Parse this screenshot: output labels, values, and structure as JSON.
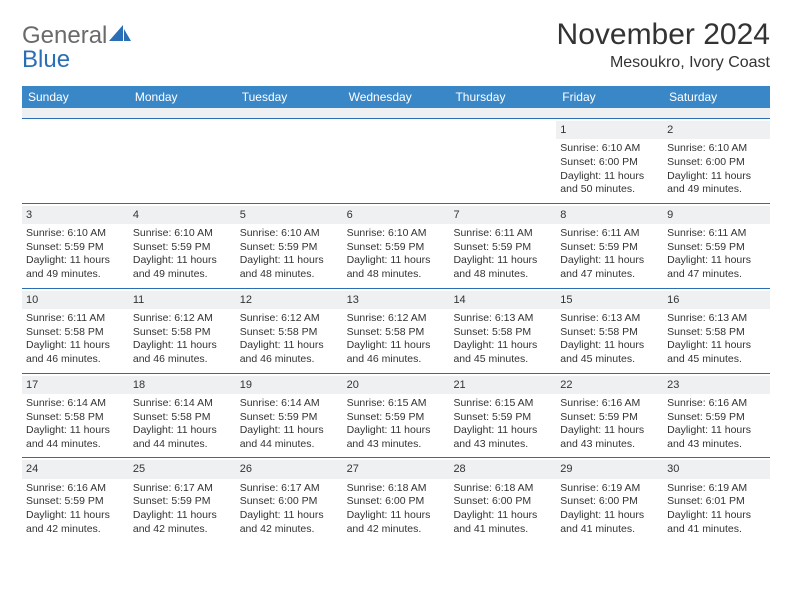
{
  "logo": {
    "text1": "General",
    "text2": "Blue"
  },
  "title": "November 2024",
  "subtitle": "Mesoukro, Ivory Coast",
  "header_bg": "#3a87c8",
  "header_fg": "#ffffff",
  "daynum_bg": "#eef0f2",
  "border_color": "#2a6fb5",
  "weekdays": [
    "Sunday",
    "Monday",
    "Tuesday",
    "Wednesday",
    "Thursday",
    "Friday",
    "Saturday"
  ],
  "weeks": [
    [
      {
        "n": "",
        "sr": "",
        "ss": "",
        "dl": ""
      },
      {
        "n": "",
        "sr": "",
        "ss": "",
        "dl": ""
      },
      {
        "n": "",
        "sr": "",
        "ss": "",
        "dl": ""
      },
      {
        "n": "",
        "sr": "",
        "ss": "",
        "dl": ""
      },
      {
        "n": "",
        "sr": "",
        "ss": "",
        "dl": ""
      },
      {
        "n": "1",
        "sr": "Sunrise: 6:10 AM",
        "ss": "Sunset: 6:00 PM",
        "dl": "Daylight: 11 hours and 50 minutes."
      },
      {
        "n": "2",
        "sr": "Sunrise: 6:10 AM",
        "ss": "Sunset: 6:00 PM",
        "dl": "Daylight: 11 hours and 49 minutes."
      }
    ],
    [
      {
        "n": "3",
        "sr": "Sunrise: 6:10 AM",
        "ss": "Sunset: 5:59 PM",
        "dl": "Daylight: 11 hours and 49 minutes."
      },
      {
        "n": "4",
        "sr": "Sunrise: 6:10 AM",
        "ss": "Sunset: 5:59 PM",
        "dl": "Daylight: 11 hours and 49 minutes."
      },
      {
        "n": "5",
        "sr": "Sunrise: 6:10 AM",
        "ss": "Sunset: 5:59 PM",
        "dl": "Daylight: 11 hours and 48 minutes."
      },
      {
        "n": "6",
        "sr": "Sunrise: 6:10 AM",
        "ss": "Sunset: 5:59 PM",
        "dl": "Daylight: 11 hours and 48 minutes."
      },
      {
        "n": "7",
        "sr": "Sunrise: 6:11 AM",
        "ss": "Sunset: 5:59 PM",
        "dl": "Daylight: 11 hours and 48 minutes."
      },
      {
        "n": "8",
        "sr": "Sunrise: 6:11 AM",
        "ss": "Sunset: 5:59 PM",
        "dl": "Daylight: 11 hours and 47 minutes."
      },
      {
        "n": "9",
        "sr": "Sunrise: 6:11 AM",
        "ss": "Sunset: 5:59 PM",
        "dl": "Daylight: 11 hours and 47 minutes."
      }
    ],
    [
      {
        "n": "10",
        "sr": "Sunrise: 6:11 AM",
        "ss": "Sunset: 5:58 PM",
        "dl": "Daylight: 11 hours and 46 minutes."
      },
      {
        "n": "11",
        "sr": "Sunrise: 6:12 AM",
        "ss": "Sunset: 5:58 PM",
        "dl": "Daylight: 11 hours and 46 minutes."
      },
      {
        "n": "12",
        "sr": "Sunrise: 6:12 AM",
        "ss": "Sunset: 5:58 PM",
        "dl": "Daylight: 11 hours and 46 minutes."
      },
      {
        "n": "13",
        "sr": "Sunrise: 6:12 AM",
        "ss": "Sunset: 5:58 PM",
        "dl": "Daylight: 11 hours and 46 minutes."
      },
      {
        "n": "14",
        "sr": "Sunrise: 6:13 AM",
        "ss": "Sunset: 5:58 PM",
        "dl": "Daylight: 11 hours and 45 minutes."
      },
      {
        "n": "15",
        "sr": "Sunrise: 6:13 AM",
        "ss": "Sunset: 5:58 PM",
        "dl": "Daylight: 11 hours and 45 minutes."
      },
      {
        "n": "16",
        "sr": "Sunrise: 6:13 AM",
        "ss": "Sunset: 5:58 PM",
        "dl": "Daylight: 11 hours and 45 minutes."
      }
    ],
    [
      {
        "n": "17",
        "sr": "Sunrise: 6:14 AM",
        "ss": "Sunset: 5:58 PM",
        "dl": "Daylight: 11 hours and 44 minutes."
      },
      {
        "n": "18",
        "sr": "Sunrise: 6:14 AM",
        "ss": "Sunset: 5:58 PM",
        "dl": "Daylight: 11 hours and 44 minutes."
      },
      {
        "n": "19",
        "sr": "Sunrise: 6:14 AM",
        "ss": "Sunset: 5:59 PM",
        "dl": "Daylight: 11 hours and 44 minutes."
      },
      {
        "n": "20",
        "sr": "Sunrise: 6:15 AM",
        "ss": "Sunset: 5:59 PM",
        "dl": "Daylight: 11 hours and 43 minutes."
      },
      {
        "n": "21",
        "sr": "Sunrise: 6:15 AM",
        "ss": "Sunset: 5:59 PM",
        "dl": "Daylight: 11 hours and 43 minutes."
      },
      {
        "n": "22",
        "sr": "Sunrise: 6:16 AM",
        "ss": "Sunset: 5:59 PM",
        "dl": "Daylight: 11 hours and 43 minutes."
      },
      {
        "n": "23",
        "sr": "Sunrise: 6:16 AM",
        "ss": "Sunset: 5:59 PM",
        "dl": "Daylight: 11 hours and 43 minutes."
      }
    ],
    [
      {
        "n": "24",
        "sr": "Sunrise: 6:16 AM",
        "ss": "Sunset: 5:59 PM",
        "dl": "Daylight: 11 hours and 42 minutes."
      },
      {
        "n": "25",
        "sr": "Sunrise: 6:17 AM",
        "ss": "Sunset: 5:59 PM",
        "dl": "Daylight: 11 hours and 42 minutes."
      },
      {
        "n": "26",
        "sr": "Sunrise: 6:17 AM",
        "ss": "Sunset: 6:00 PM",
        "dl": "Daylight: 11 hours and 42 minutes."
      },
      {
        "n": "27",
        "sr": "Sunrise: 6:18 AM",
        "ss": "Sunset: 6:00 PM",
        "dl": "Daylight: 11 hours and 42 minutes."
      },
      {
        "n": "28",
        "sr": "Sunrise: 6:18 AM",
        "ss": "Sunset: 6:00 PM",
        "dl": "Daylight: 11 hours and 41 minutes."
      },
      {
        "n": "29",
        "sr": "Sunrise: 6:19 AM",
        "ss": "Sunset: 6:00 PM",
        "dl": "Daylight: 11 hours and 41 minutes."
      },
      {
        "n": "30",
        "sr": "Sunrise: 6:19 AM",
        "ss": "Sunset: 6:01 PM",
        "dl": "Daylight: 11 hours and 41 minutes."
      }
    ]
  ]
}
